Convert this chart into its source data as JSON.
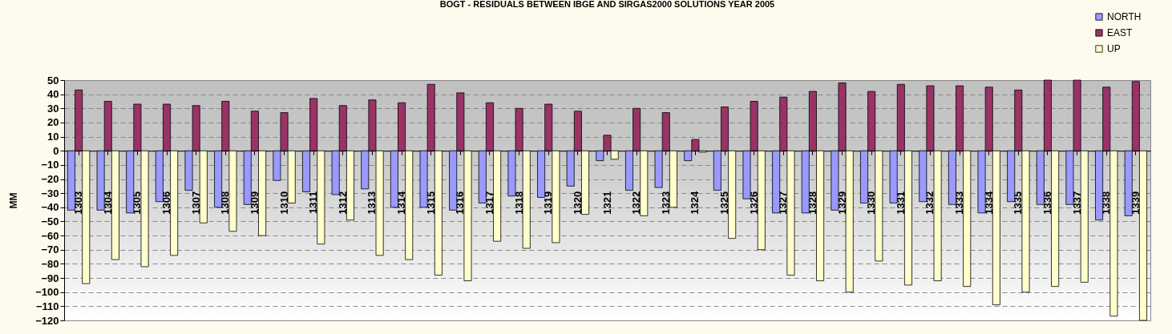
{
  "chart_data": {
    "type": "bar",
    "title": "BOGT - RESIDUALS BETWEEN IBGE AND SIRGAS2000 SOLUTIONS YEAR 2005",
    "ylabel": "MM",
    "categories": [
      "1303",
      "1304",
      "1305",
      "1306",
      "1307",
      "1308",
      "1309",
      "1310",
      "1311",
      "1312",
      "1313",
      "1314",
      "1315",
      "1316",
      "1317",
      "1318",
      "1319",
      "1320",
      "1321",
      "1322",
      "1323",
      "1324",
      "1325",
      "1326",
      "1327",
      "1328",
      "1329",
      "1330",
      "1331",
      "1332",
      "1333",
      "1334",
      "1335",
      "1336",
      "1337",
      "1338",
      "1339"
    ],
    "series": [
      {
        "name": "NORTH",
        "color": "#9999ff",
        "values": [
          -42,
          -42,
          -44,
          -36,
          -28,
          -40,
          -38,
          -21,
          -29,
          -31,
          -27,
          -40,
          -40,
          -42,
          -37,
          -32,
          -33,
          -25,
          -7,
          -28,
          -26,
          -7,
          -28,
          -34,
          -44,
          -44,
          -42,
          -37,
          -37,
          -36,
          -38,
          -44,
          -36,
          -38,
          -38,
          -49,
          -46
        ]
      },
      {
        "name": "EAST",
        "color": "#993366",
        "values": [
          43,
          35,
          33,
          33,
          32,
          35,
          28,
          27,
          37,
          32,
          36,
          34,
          47,
          41,
          34,
          30,
          33,
          28,
          11,
          30,
          27,
          8,
          31,
          35,
          38,
          42,
          48,
          42,
          47,
          46,
          46,
          45,
          43,
          50,
          50,
          45,
          49
        ]
      },
      {
        "name": "UP",
        "color": "#ffffcc",
        "values": [
          -94,
          -77,
          -82,
          -74,
          -51,
          -57,
          -60,
          -37,
          -66,
          -49,
          -74,
          -77,
          -88,
          -92,
          -64,
          -69,
          -65,
          -45,
          -6,
          -46,
          -40,
          -1,
          -62,
          -70,
          -88,
          -92,
          -100,
          -78,
          -95,
          -92,
          -96,
          -109,
          -100,
          -96,
          -93,
          -117,
          -120
        ]
      }
    ],
    "ylim": [
      -120,
      50
    ],
    "yticks": [
      50,
      40,
      30,
      20,
      10,
      0,
      -10,
      -20,
      -30,
      -40,
      -50,
      -60,
      -70,
      -80,
      -90,
      -100,
      -110,
      -120
    ],
    "grid": "y",
    "legend": "top right"
  }
}
